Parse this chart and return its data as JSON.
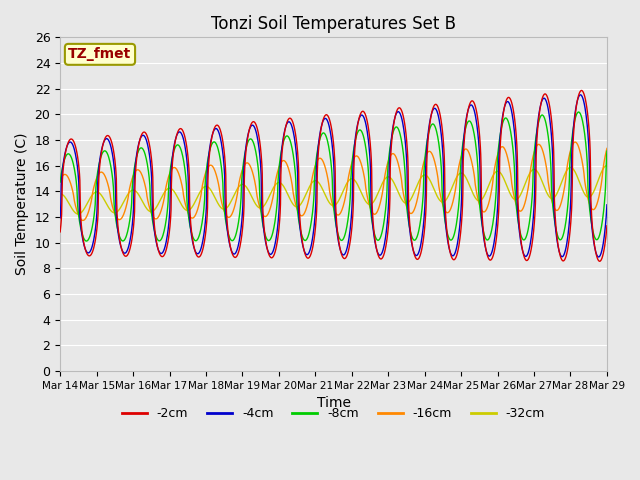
{
  "title": "Tonzi Soil Temperatures Set B",
  "xlabel": "Time",
  "ylabel": "Soil Temperature (C)",
  "annotation_text": "TZ_fmet",
  "annotation_color": "#990000",
  "annotation_bg": "#ffffcc",
  "annotation_border": "#999900",
  "ylim": [
    0,
    26
  ],
  "yticks": [
    0,
    2,
    4,
    6,
    8,
    10,
    12,
    14,
    16,
    18,
    20,
    22,
    24,
    26
  ],
  "bg_color": "#e8e8e8",
  "plot_bg": "#e8e8e8",
  "grid_color": "#ffffff",
  "series_colors": [
    "#dd0000",
    "#0000cc",
    "#00cc00",
    "#ff8800",
    "#cccc00"
  ],
  "series_labels": [
    "-2cm",
    "-4cm",
    "-8cm",
    "-16cm",
    "-32cm"
  ],
  "x_labels": [
    "Mar 14",
    "Mar 15",
    "Mar 16",
    "Mar 17",
    "Mar 18",
    "Mar 19",
    "Mar 20",
    "Mar 21",
    "Mar 22",
    "Mar 23",
    "Mar 24",
    "Mar 25",
    "Mar 26",
    "Mar 27",
    "Mar 28",
    "Mar 29"
  ],
  "n_days": 15,
  "figsize": [
    6.4,
    4.8
  ],
  "dpi": 100
}
